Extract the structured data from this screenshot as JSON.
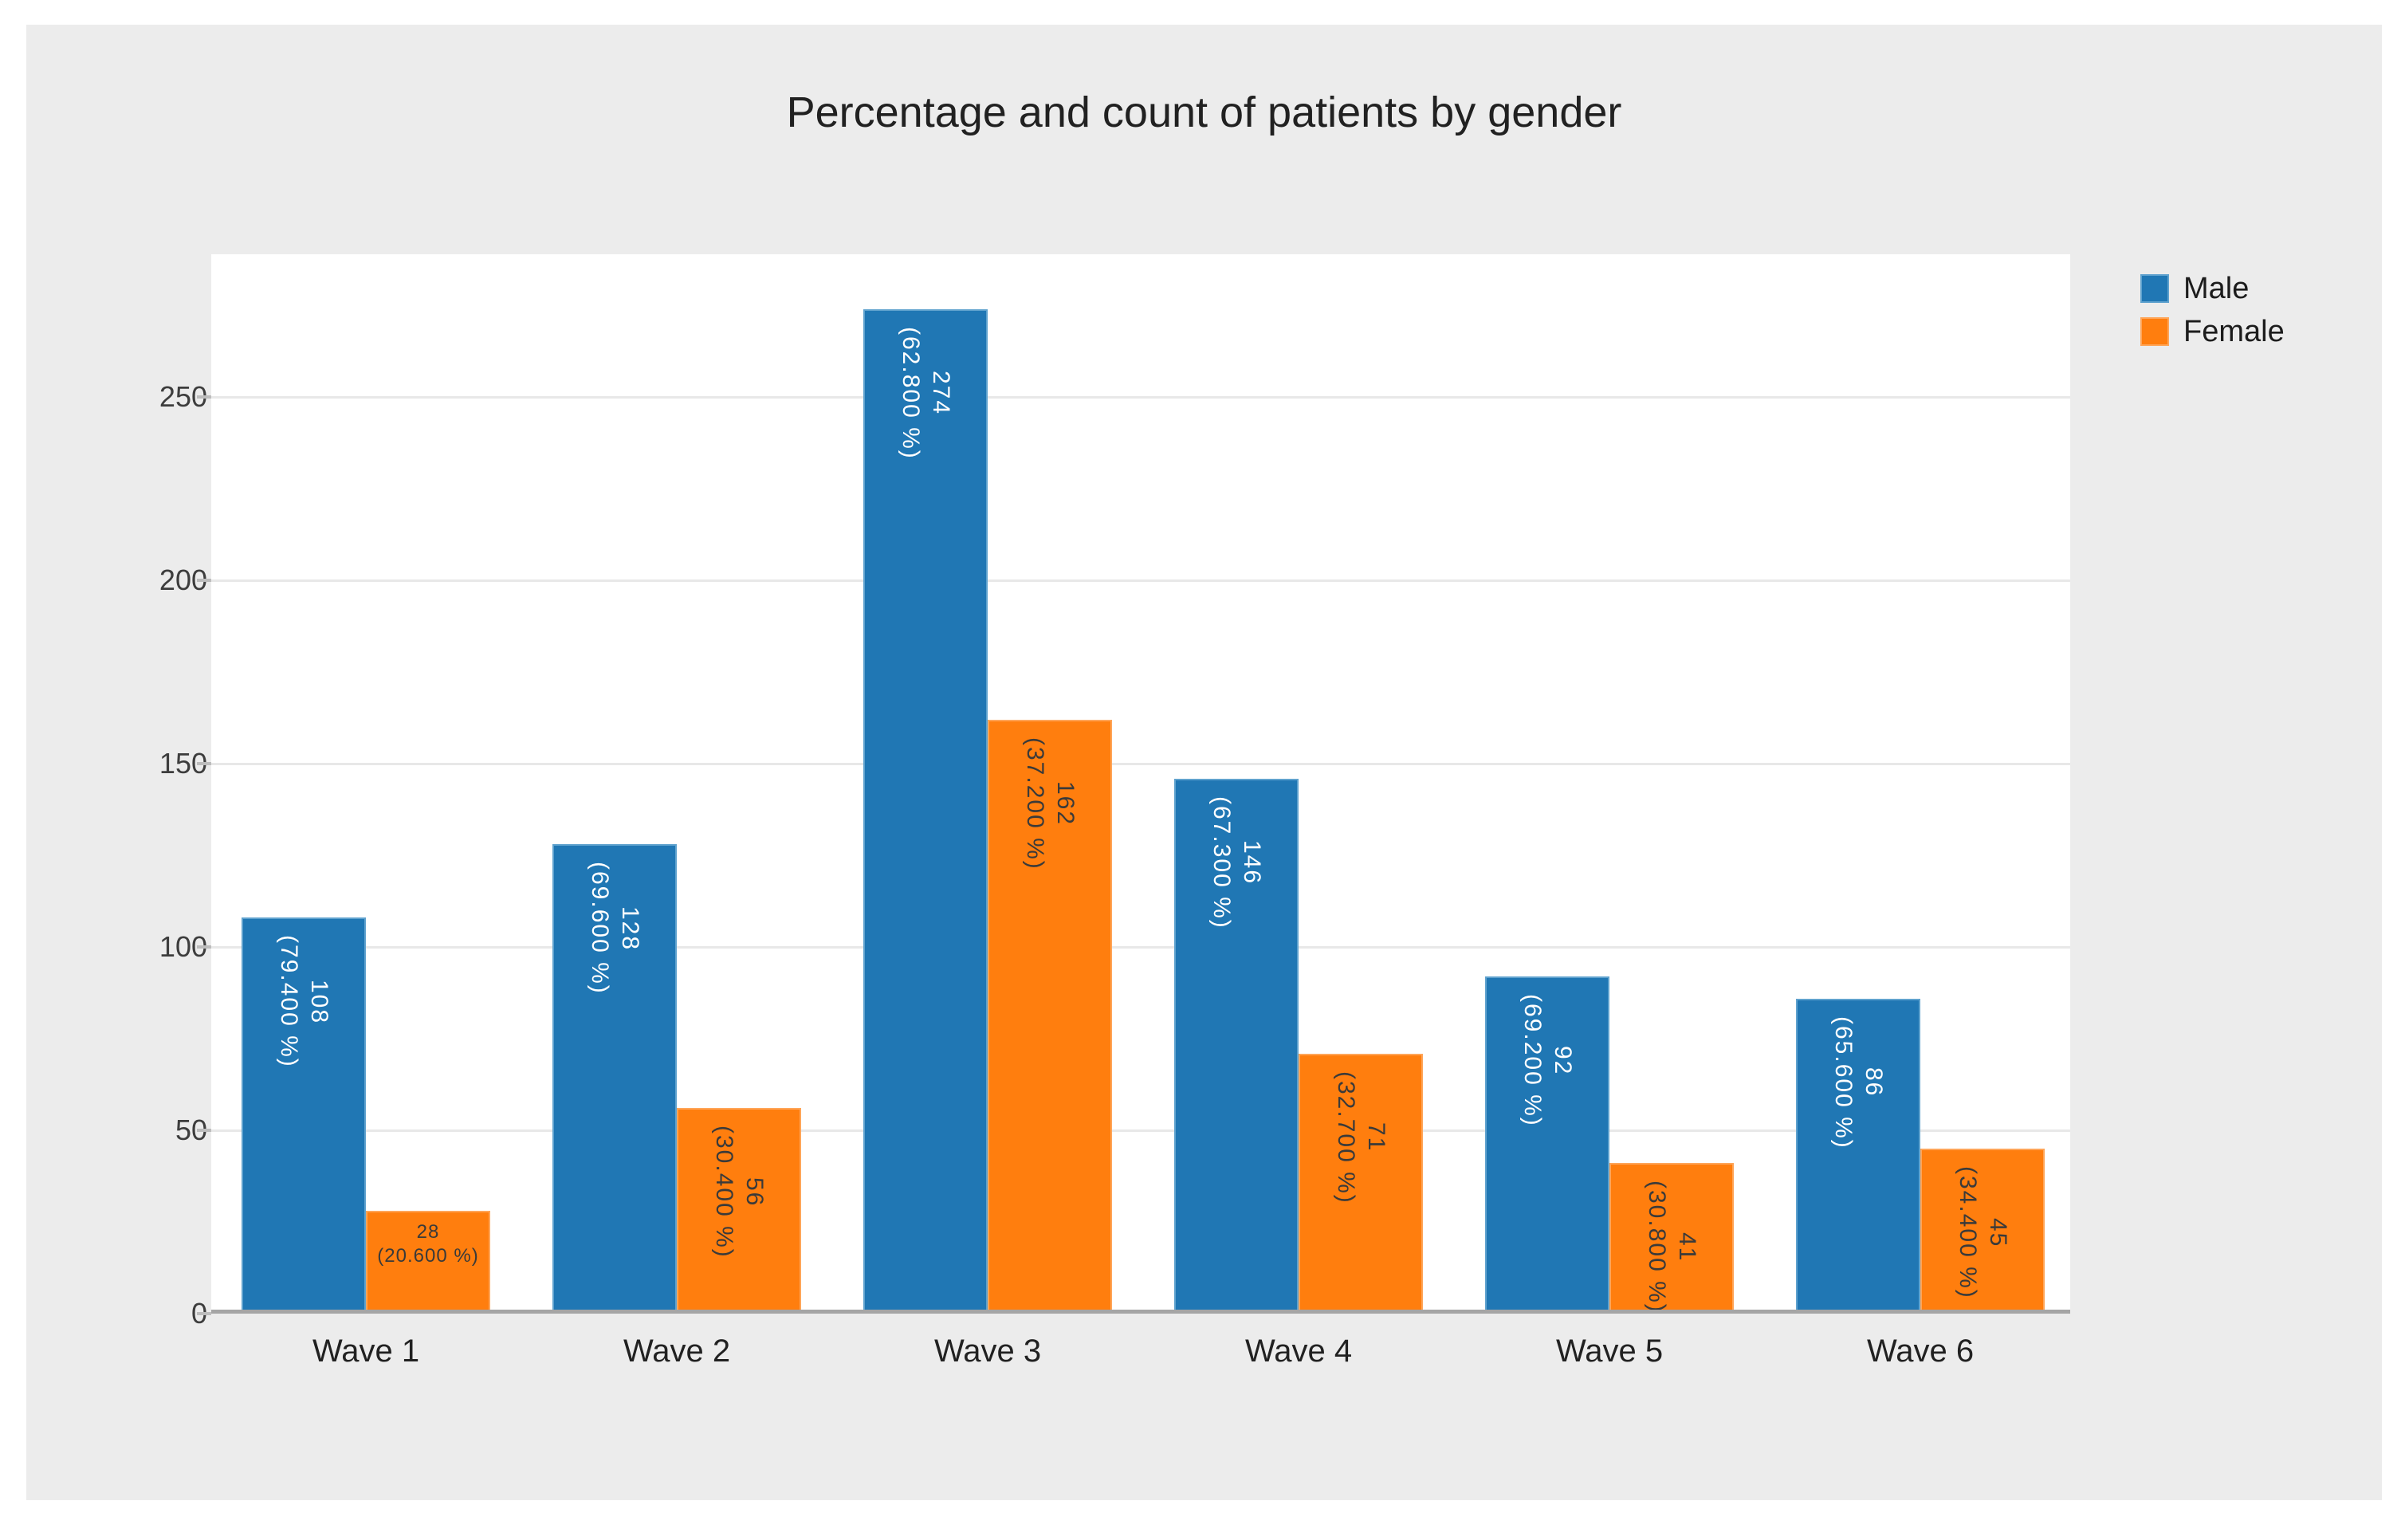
{
  "page": {
    "background": "#FFFFFF",
    "canvas_background": "#ECECEC"
  },
  "chart_data": {
    "type": "bar",
    "title": "Percentage and count of patients by gender",
    "categories": [
      "Wave 1",
      "Wave 2",
      "Wave 3",
      "Wave 4",
      "Wave 5",
      "Wave 6"
    ],
    "series": [
      {
        "name": "Male",
        "color": "#2077B4",
        "edge_color": "#5FA2CE",
        "label_color": "#FFFFFF",
        "values": [
          108,
          128,
          274,
          146,
          92,
          86
        ],
        "percent_labels": [
          "(79.400 %)",
          "(69.600 %)",
          "(62.800 %)",
          "(67.300 %)",
          "(69.200 %)",
          "(65.600 %)"
        ]
      },
      {
        "name": "Female",
        "color": "#FF7E0E",
        "edge_color": "#FFA558",
        "label_color": "#3A3A3A",
        "values": [
          28,
          56,
          162,
          71,
          41,
          45
        ],
        "percent_labels": [
          "(20.600 %)",
          "(30.400 %)",
          "(37.200 %)",
          "(32.700 %)",
          "(30.800 %)",
          "(34.400 %)"
        ]
      }
    ],
    "yticks": [
      0,
      50,
      100,
      150,
      200,
      250
    ],
    "ylim": [
      0,
      289
    ],
    "grid": true,
    "legend_position": "top-right-outside",
    "xlabel": "",
    "ylabel": ""
  },
  "legend": {
    "items": [
      {
        "label": "Male"
      },
      {
        "label": "Female"
      }
    ]
  }
}
